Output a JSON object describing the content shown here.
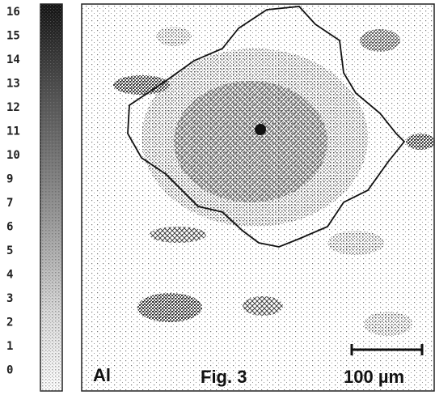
{
  "colorbar": {
    "labels": [
      "16",
      "15",
      "14",
      "13",
      "12",
      "11",
      "10",
      "9",
      "7",
      "6",
      "5",
      "4",
      "3",
      "2",
      "1",
      "0"
    ]
  },
  "map": {
    "element": "Al",
    "caption": "Fig. 3",
    "scale_bar": "100 µm"
  }
}
